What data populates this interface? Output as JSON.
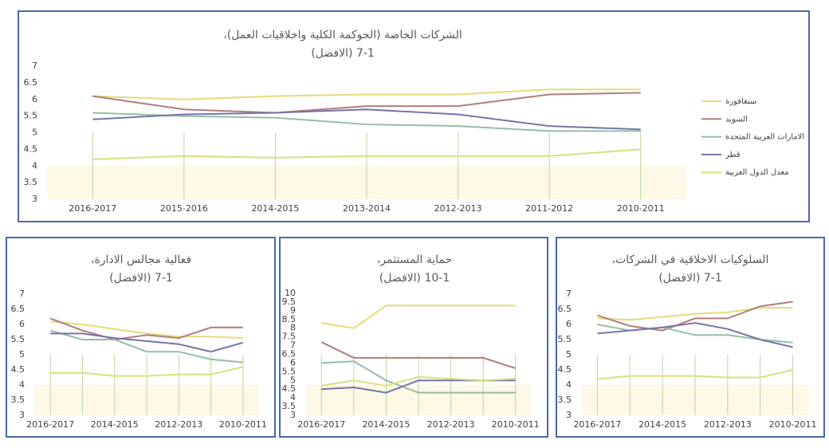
{
  "chart_data": [
    {
      "type": "line",
      "title": "الشركات الخاصة (الحوكمة الكلية واخلاقيات العمل)،",
      "subtitle": "7-1 (الافضل)",
      "categories": [
        "2016-2017",
        "2015-2016",
        "2014-2015",
        "2013-2014",
        "2012-2013",
        "2011-2012",
        "2010-2011"
      ],
      "ylim": [
        3,
        7
      ],
      "yticks": [
        3,
        3.5,
        4,
        4.5,
        5,
        5.5,
        6,
        6.5,
        7
      ],
      "grid": false,
      "legend": "right",
      "series": [
        {
          "name": "سنغافورة",
          "color": "#e3dc7b",
          "values": [
            6.1,
            6.0,
            6.1,
            6.15,
            6.15,
            6.3,
            6.3
          ]
        },
        {
          "name": "السويد",
          "color": "#b07d7b",
          "values": [
            6.1,
            5.7,
            5.6,
            5.8,
            5.8,
            6.15,
            6.2
          ]
        },
        {
          "name": "الامارات العربية المتحدة",
          "color": "#96bcaa",
          "values": [
            5.6,
            5.5,
            5.45,
            5.25,
            5.2,
            5.05,
            5.05
          ]
        },
        {
          "name": "قطر",
          "color": "#7574a8",
          "values": [
            5.4,
            5.55,
            5.6,
            5.7,
            5.55,
            5.2,
            5.1
          ]
        },
        {
          "name": "معدل الدول العربية",
          "color": "#d9e07d",
          "values": [
            4.2,
            4.3,
            4.25,
            4.3,
            4.3,
            4.3,
            4.5
          ]
        }
      ]
    },
    {
      "type": "line",
      "title": "فعالية مجالس الادارة،",
      "subtitle": "7-1 (الافضل)",
      "categories": [
        "2016-2017",
        null,
        "2014-2015",
        null,
        "2012-2013",
        null,
        "2010-2011"
      ],
      "ylim": [
        3,
        7
      ],
      "yticks": [
        3,
        3.5,
        4,
        4.5,
        5,
        5.5,
        6,
        6.5,
        7
      ],
      "grid": false,
      "series": [
        {
          "color": "#e3dc7b",
          "values": [
            6.1,
            6.0,
            5.85,
            5.7,
            5.6,
            5.6,
            5.55
          ]
        },
        {
          "color": "#b07d7b",
          "values": [
            6.2,
            5.8,
            5.5,
            5.65,
            5.55,
            5.9,
            5.9
          ]
        },
        {
          "color": "#96bcaa",
          "values": [
            5.8,
            5.5,
            5.5,
            5.1,
            5.1,
            4.85,
            4.75
          ]
        },
        {
          "color": "#7574a8",
          "values": [
            5.7,
            5.7,
            5.55,
            5.45,
            5.35,
            5.1,
            5.4
          ]
        },
        {
          "color": "#d9e07d",
          "values": [
            4.4,
            4.4,
            4.3,
            4.3,
            4.35,
            4.35,
            4.6
          ]
        }
      ]
    },
    {
      "type": "line",
      "title": "حماية المستثمر،",
      "subtitle": "10-1 (الافضل)",
      "categories": [
        "2016-2017",
        null,
        "2014-2015",
        null,
        "2012-2013",
        null,
        "2010-2011"
      ],
      "ylim": [
        3,
        10
      ],
      "yticks": [
        3,
        3.5,
        4,
        4.5,
        5,
        5.5,
        6,
        6.5,
        7,
        7.5,
        8,
        8.5,
        9,
        9.5,
        10
      ],
      "grid": false,
      "series": [
        {
          "color": "#e3dc7b",
          "values": [
            8.3,
            8.0,
            9.3,
            9.3,
            9.3,
            9.3,
            9.3
          ]
        },
        {
          "color": "#b07d7b",
          "values": [
            7.2,
            6.3,
            6.3,
            6.3,
            6.3,
            6.3,
            5.7
          ]
        },
        {
          "color": "#96bcaa",
          "values": [
            6.0,
            6.1,
            5.0,
            4.3,
            4.3,
            4.3,
            4.3
          ]
        },
        {
          "color": "#7574a8",
          "values": [
            4.5,
            4.6,
            4.3,
            5.0,
            5.0,
            5.0,
            5.0
          ]
        },
        {
          "color": "#d9e07d",
          "values": [
            4.7,
            5.0,
            4.7,
            5.2,
            5.1,
            5.0,
            5.1
          ]
        }
      ]
    },
    {
      "type": "line",
      "title": "السلوكيات الاخلاقية في الشركات،",
      "subtitle": "7-1 (الافضل)",
      "categories": [
        "2016-2017",
        null,
        "2014-2015",
        null,
        "2012-2013",
        null,
        "2010-2011"
      ],
      "ylim": [
        3,
        7
      ],
      "yticks": [
        3,
        3.5,
        4,
        4.5,
        5,
        5.5,
        6,
        6.5,
        7
      ],
      "grid": false,
      "series": [
        {
          "color": "#e3dc7b",
          "values": [
            6.2,
            6.15,
            6.25,
            6.35,
            6.4,
            6.55,
            6.55
          ]
        },
        {
          "color": "#b07d7b",
          "values": [
            6.3,
            5.95,
            5.8,
            6.2,
            6.2,
            6.6,
            6.75
          ]
        },
        {
          "color": "#96bcaa",
          "values": [
            6.0,
            5.8,
            5.9,
            5.65,
            5.65,
            5.5,
            5.4
          ]
        },
        {
          "color": "#7574a8",
          "values": [
            5.7,
            5.8,
            5.9,
            6.05,
            5.85,
            5.5,
            5.25
          ]
        },
        {
          "color": "#d9e07d",
          "values": [
            4.2,
            4.3,
            4.3,
            4.3,
            4.25,
            4.25,
            4.5
          ]
        }
      ]
    }
  ]
}
